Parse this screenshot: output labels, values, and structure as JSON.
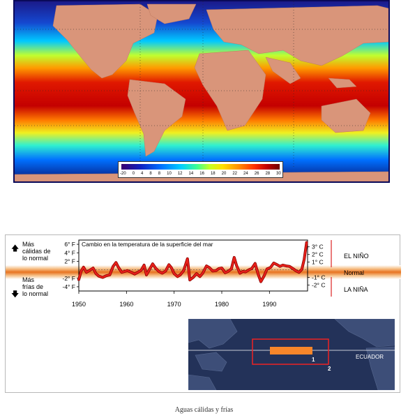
{
  "scale": {
    "ticks": [
      "-20",
      "0",
      "4",
      "8",
      "8",
      "10",
      "12",
      "14",
      "16",
      "18",
      "20",
      "22",
      "24",
      "26",
      "28",
      "30"
    ]
  },
  "chart_data": {
    "type": "line",
    "title": "Cambio en la temperatura de la superficie del mar",
    "x_ticks": [
      "1950",
      "1960",
      "1970",
      "1980",
      "1990"
    ],
    "y_ticks_f": [
      "6° F",
      "4° F",
      "2° F",
      "-2° F",
      "-4° F"
    ],
    "y_ticks_c": [
      "3° C",
      "2° C",
      "1° C",
      "-1° C",
      "-2° C"
    ],
    "ylim_f": [
      -5,
      7
    ],
    "xlim": [
      1950,
      1998
    ],
    "band_labels": [
      "EL NIÑO",
      "Normal",
      "LA NIÑA"
    ],
    "series": [
      {
        "x": [
          1950,
          1950.5,
          1951,
          1951.6,
          1952.2,
          1953,
          1953.6,
          1954.2,
          1955,
          1955.8,
          1956.5,
          1957.2,
          1957.8,
          1958.3,
          1959,
          1959.6,
          1960.2,
          1961,
          1961.7,
          1962.4,
          1963.1,
          1963.7,
          1964.2,
          1964.9,
          1965.5,
          1966.1,
          1966.8,
          1967.5,
          1968.2,
          1968.9,
          1969.4,
          1970,
          1970.7,
          1971.3,
          1972,
          1972.8,
          1973.3,
          1974,
          1974.7,
          1975.4,
          1976,
          1976.8,
          1977.4,
          1978.1,
          1978.8,
          1979.4,
          1980,
          1980.7,
          1981.3,
          1982,
          1982.6,
          1983.1,
          1983.8,
          1984.4,
          1985,
          1985.7,
          1986.3,
          1987,
          1987.6,
          1988.2,
          1988.9,
          1989.5,
          1990.2,
          1990.9,
          1991.6,
          1992.2,
          1992.8,
          1993.5,
          1994.2,
          1994.9,
          1995.5,
          1996.2,
          1996.8,
          1997.3,
          1997.8
        ],
        "values": [
          -2.3,
          -0.3,
          0.6,
          -0.6,
          -0.2,
          0.4,
          -0.9,
          -1.5,
          -1.8,
          -1.4,
          -1.2,
          0.8,
          1.7,
          0.6,
          -0.6,
          -0.4,
          -0.2,
          -0.6,
          -1.0,
          -0.6,
          -0.1,
          1.1,
          -1.2,
          0.2,
          1.4,
          0.4,
          -0.4,
          -0.8,
          -0.3,
          1.2,
          0.5,
          -0.9,
          -1.6,
          -1.2,
          -0.2,
          2.6,
          -2.4,
          -1.8,
          -0.9,
          -1.6,
          -0.8,
          0.9,
          0.5,
          -0.3,
          -0.2,
          0.3,
          0.4,
          -0.7,
          -0.4,
          0.2,
          2.9,
          1.0,
          -0.8,
          -0.4,
          -0.5,
          0.0,
          0.3,
          1.5,
          -0.9,
          -2.8,
          -1.4,
          0.2,
          0.5,
          1.6,
          1.2,
          0.8,
          1.1,
          0.9,
          0.8,
          0.3,
          -0.2,
          -0.6,
          0.1,
          2.5,
          6.4
        ]
      }
    ]
  },
  "side_labels": {
    "warmer": [
      "Más",
      "cálidas de",
      "lo normal"
    ],
    "colder": [
      "Más",
      "frías de",
      "lo normal"
    ]
  },
  "inset": {
    "equator_label": "ECUADOR",
    "box_1": "1",
    "box_2": "2"
  },
  "caption": "Aguas cálidas y frías"
}
